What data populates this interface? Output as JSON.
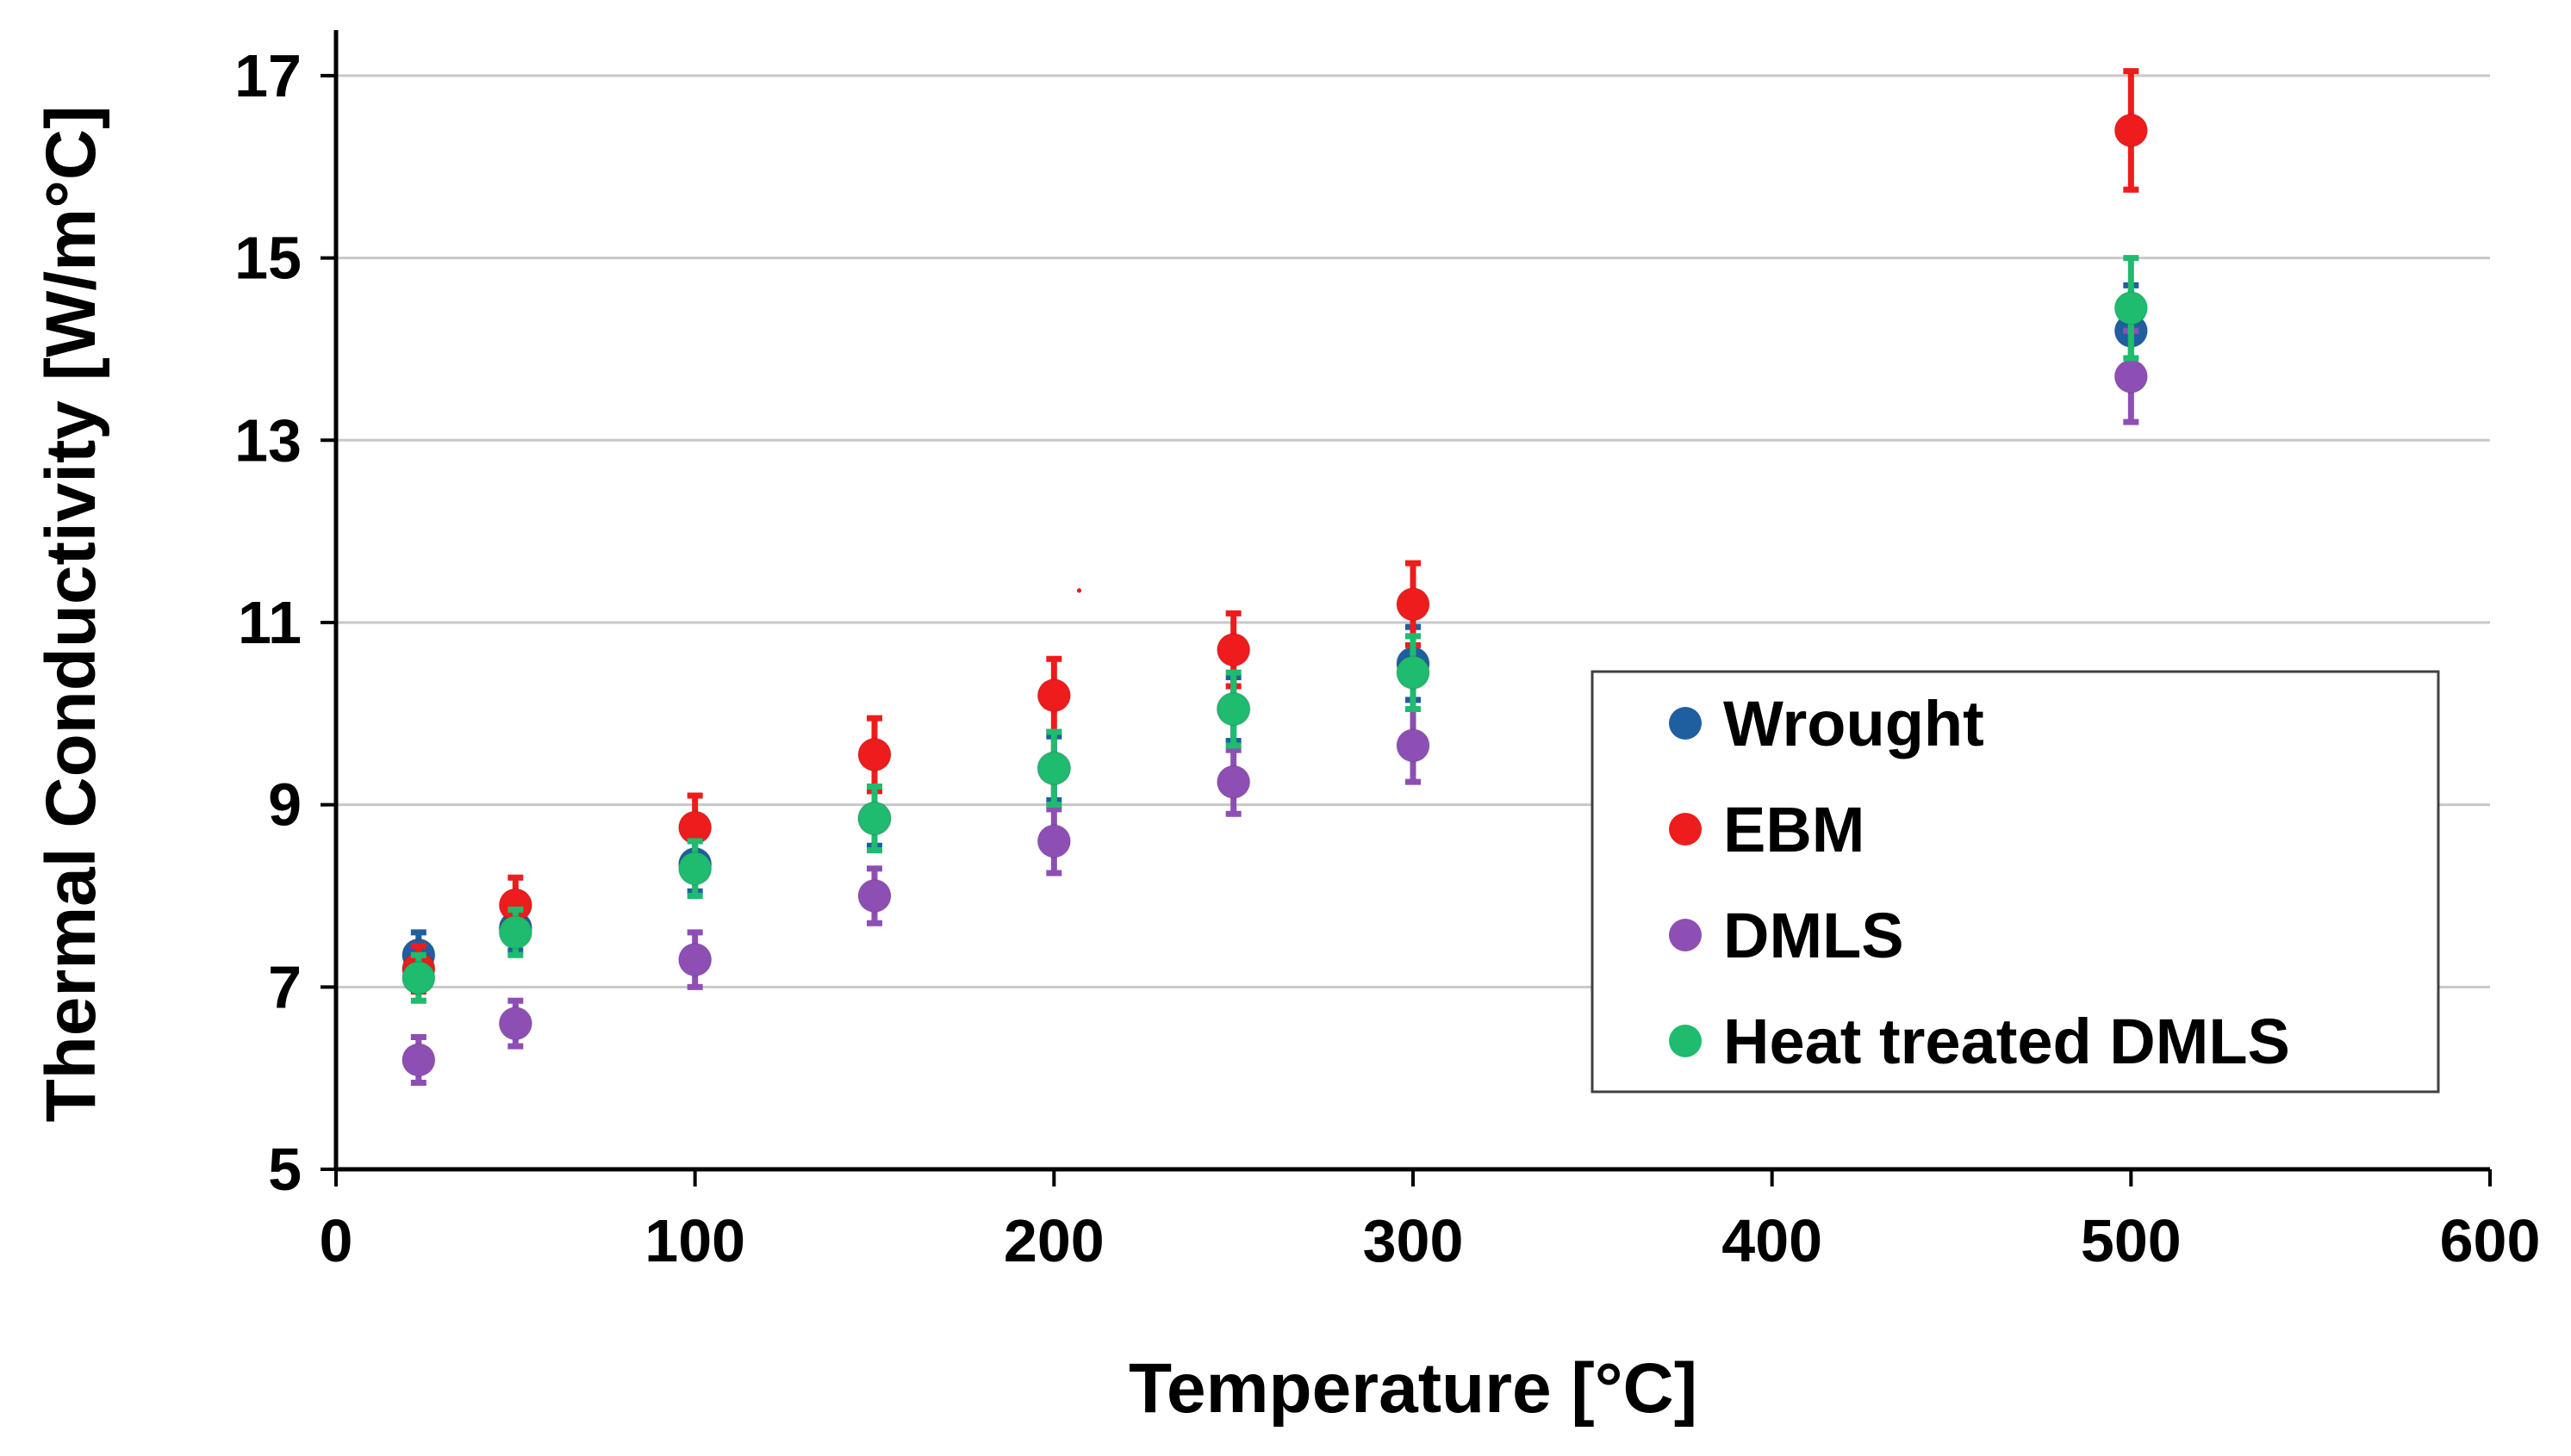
{
  "chart_data": {
    "type": "scatter",
    "title": "",
    "xlabel": "Temperature [°C]",
    "ylabel": "Thermal Conductivity [W/m°C]",
    "xlim": [
      0,
      600
    ],
    "ylim": [
      5,
      17.5
    ],
    "xticks": [
      "0",
      "100",
      "200",
      "300",
      "400",
      "500",
      "600"
    ],
    "yticks": [
      "5",
      "7",
      "9",
      "11",
      "13",
      "15",
      "17"
    ],
    "grid": true,
    "legend_position": "right",
    "series": [
      {
        "name": "Wrought",
        "color": "#1f5fa0",
        "points": [
          {
            "x": 23,
            "y": 7.35,
            "err": 0.25
          },
          {
            "x": 50,
            "y": 7.65,
            "err": 0.25
          },
          {
            "x": 100,
            "y": 8.35,
            "err": 0.3
          },
          {
            "x": 150,
            "y": 8.85,
            "err": 0.3
          },
          {
            "x": 200,
            "y": 9.4,
            "err": 0.35
          },
          {
            "x": 250,
            "y": 10.05,
            "err": 0.35
          },
          {
            "x": 300,
            "y": 10.55,
            "err": 0.4
          },
          {
            "x": 500,
            "y": 14.2,
            "err": 0.5
          }
        ]
      },
      {
        "name": "EBM",
        "color": "#ee1c1c",
        "points": [
          {
            "x": 23,
            "y": 7.2,
            "err": 0.25
          },
          {
            "x": 50,
            "y": 7.9,
            "err": 0.3
          },
          {
            "x": 100,
            "y": 8.75,
            "err": 0.35
          },
          {
            "x": 150,
            "y": 9.55,
            "err": 0.4
          },
          {
            "x": 200,
            "y": 10.2,
            "err": 0.4
          },
          {
            "x": 250,
            "y": 10.7,
            "err": 0.4
          },
          {
            "x": 300,
            "y": 11.2,
            "err": 0.45
          },
          {
            "x": 500,
            "y": 16.4,
            "err": 0.65
          }
        ]
      },
      {
        "name": "DMLS",
        "color": "#8e4fb4",
        "points": [
          {
            "x": 23,
            "y": 6.2,
            "err": 0.25
          },
          {
            "x": 50,
            "y": 6.6,
            "err": 0.25
          },
          {
            "x": 100,
            "y": 7.3,
            "err": 0.3
          },
          {
            "x": 150,
            "y": 8.0,
            "err": 0.3
          },
          {
            "x": 200,
            "y": 8.6,
            "err": 0.35
          },
          {
            "x": 250,
            "y": 9.25,
            "err": 0.35
          },
          {
            "x": 300,
            "y": 9.65,
            "err": 0.4
          },
          {
            "x": 500,
            "y": 13.7,
            "err": 0.5
          }
        ]
      },
      {
        "name": "Heat treated DMLS",
        "color": "#1fbb6e",
        "points": [
          {
            "x": 23,
            "y": 7.1,
            "err": 0.25
          },
          {
            "x": 50,
            "y": 7.6,
            "err": 0.25
          },
          {
            "x": 100,
            "y": 8.3,
            "err": 0.3
          },
          {
            "x": 150,
            "y": 8.85,
            "err": 0.35
          },
          {
            "x": 200,
            "y": 9.4,
            "err": 0.4
          },
          {
            "x": 250,
            "y": 10.05,
            "err": 0.4
          },
          {
            "x": 300,
            "y": 10.45,
            "err": 0.4
          },
          {
            "x": 500,
            "y": 14.45,
            "err": 0.55
          }
        ]
      }
    ],
    "annotations": [
      {
        "text": "•",
        "x": 207,
        "y": 11.35,
        "color": "#ee1c1c"
      }
    ]
  }
}
